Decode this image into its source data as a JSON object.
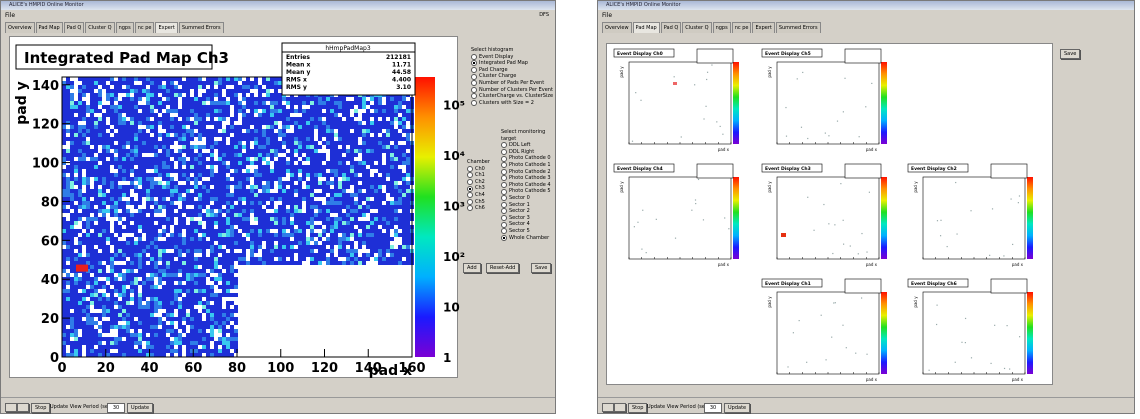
{
  "left_window": {
    "title_bar": "ALICE's HMPID Online Monitor",
    "menu": "File",
    "menu_right": "DFS",
    "tabs": [
      "Overview",
      "Pad Map",
      "Pad Q",
      "Cluster Q",
      "ngps",
      "nc pe",
      "Expert",
      "Summed Errors"
    ],
    "active_tab": 6,
    "plot": {
      "title": "Integrated Pad Map Ch3",
      "stats": {
        "name": "hHmpPadMap3",
        "rows": [
          [
            "Entries",
            "212181"
          ],
          [
            "Mean x",
            "11.71"
          ],
          [
            "Mean y",
            "44.58"
          ],
          [
            "RMS x",
            "4.400"
          ],
          [
            "RMS y",
            "3.10"
          ]
        ]
      },
      "y_label": "pad y",
      "x_label": "pad x",
      "yticks": [
        "0",
        "20",
        "40",
        "60",
        "80",
        "100",
        "120",
        "140"
      ],
      "xticks": [
        "0",
        "20",
        "40",
        "60",
        "80",
        "100",
        "120",
        "140",
        "160"
      ],
      "zticks": [
        "1",
        "10",
        "10²",
        "10³",
        "10⁴",
        "10⁵"
      ]
    },
    "histogram_header": "Select histogram",
    "histograms": [
      "Event Display",
      "Integrated Pad Map",
      "Pad Charge",
      "Cluster Charge",
      "Number of Pads Per Event",
      "Number of Clusters Per Event",
      "ClusterCharge vs. ClusterSize",
      "Clusters with Size = 2"
    ],
    "histogram_selected": 1,
    "chamber_header": "Chamber",
    "chambers": [
      "Ch0",
      "Ch1",
      "Ch2",
      "Ch3",
      "Ch4",
      "Ch5",
      "Ch6"
    ],
    "chamber_selected": 3,
    "target_header": "Select monitoring target",
    "targets": [
      "DDL Left",
      "DDL Right",
      "Photo Cathode 0",
      "Photo Cathode 1",
      "Photo Cathode 2",
      "Photo Cathode 3",
      "Photo Cathode 4",
      "Photo Cathode 5",
      "Sector 0",
      "Sector 1",
      "Sector 2",
      "Sector 3",
      "Sector 4",
      "Sector 5",
      "Whole Chamber"
    ],
    "target_selected": 14,
    "buttons": [
      "Add",
      "Reset-Add",
      "Save"
    ]
  },
  "right_window": {
    "title_bar": "ALICE's HMPID Online Monitor",
    "menu": "File",
    "tabs": [
      "Overview",
      "Pad Map",
      "Pad Q",
      "Cluster Q",
      "ngps",
      "nc pe",
      "Expert",
      "Summed Errors"
    ],
    "active_tab": 1,
    "save": "Save",
    "plots": [
      "Event Display Ch0",
      "Event Display Ch5",
      "Event Display Ch4",
      "Event Display Ch3",
      "Event Display Ch2",
      "Event Display Ch1",
      "Event Display Ch6"
    ],
    "y_label": "pad y",
    "x_label": "pad x"
  },
  "bottom_bar": {
    "stop": "Stop",
    "period": "Update View Period (sec)",
    "input": "30",
    "update": "Update"
  }
}
